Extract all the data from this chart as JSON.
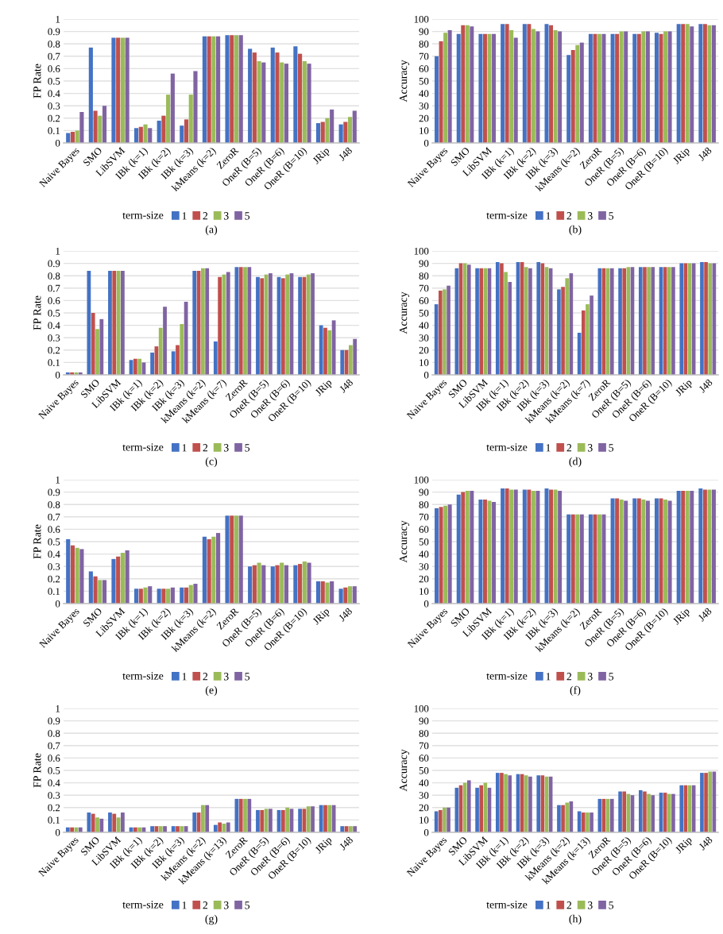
{
  "chart_data": [
    {
      "type": "bar",
      "ylabel": "FP Rate",
      "legend_title": "term-size",
      "legend": "bottom",
      "grid": "y",
      "annotations": [
        "(a)"
      ],
      "ylim": [
        0,
        1
      ],
      "yticks": [
        0,
        0.1,
        0.2,
        0.3,
        0.4,
        0.5,
        0.6,
        0.7,
        0.8,
        0.9,
        1
      ],
      "categories": [
        "Naive Bayes",
        "SMO",
        "LibSVM",
        "IBk (k=1)",
        "IBk (k=2)",
        "IBk (k=3)",
        "kMeans (k=2)",
        "ZeroR",
        "OneR (B=5)",
        "OneR (B=6)",
        "OneR (B=10)",
        "JRip",
        "J48"
      ],
      "series": [
        {
          "name": "1",
          "color": "#4472c4",
          "values": [
            0.08,
            0.77,
            0.85,
            0.12,
            0.18,
            0.14,
            0.86,
            0.87,
            0.76,
            0.77,
            0.78,
            0.16,
            0.15
          ]
        },
        {
          "name": "2",
          "color": "#c0504d",
          "values": [
            0.09,
            0.26,
            0.85,
            0.13,
            0.22,
            0.19,
            0.86,
            0.87,
            0.73,
            0.73,
            0.72,
            0.17,
            0.17
          ]
        },
        {
          "name": "3",
          "color": "#9bbb59",
          "values": [
            0.1,
            0.22,
            0.85,
            0.15,
            0.39,
            0.39,
            0.86,
            0.87,
            0.66,
            0.65,
            0.66,
            0.2,
            0.21
          ]
        },
        {
          "name": "5",
          "color": "#8064a2",
          "values": [
            0.25,
            0.3,
            0.85,
            0.12,
            0.56,
            0.58,
            0.86,
            0.87,
            0.65,
            0.64,
            0.64,
            0.27,
            0.26
          ]
        }
      ]
    },
    {
      "type": "bar",
      "ylabel": "Accuracy",
      "legend_title": "term-size",
      "legend": "bottom",
      "grid": "y",
      "annotations": [
        "(b)"
      ],
      "ylim": [
        0,
        100
      ],
      "yticks": [
        0,
        10,
        20,
        30,
        40,
        50,
        60,
        70,
        80,
        90,
        100
      ],
      "categories": [
        "Naive Bayes",
        "SMO",
        "LibSVM",
        "IBk (k=1)",
        "IBk (k=2)",
        "IBk (k=3)",
        "kMeans (k=2)",
        "ZeroR",
        "OneR (B=5)",
        "OneR (B=6)",
        "OneR (B=10)",
        "JRip",
        "J48"
      ],
      "series": [
        {
          "name": "1",
          "color": "#4472c4",
          "values": [
            70,
            88,
            88,
            96,
            96,
            96,
            71,
            88,
            88,
            88,
            89,
            96,
            96
          ]
        },
        {
          "name": "2",
          "color": "#c0504d",
          "values": [
            82,
            95,
            88,
            96,
            96,
            95,
            75,
            88,
            88,
            88,
            88,
            96,
            96
          ]
        },
        {
          "name": "3",
          "color": "#9bbb59",
          "values": [
            89,
            95,
            88,
            91,
            92,
            91,
            79,
            88,
            90,
            90,
            90,
            96,
            95
          ]
        },
        {
          "name": "5",
          "color": "#8064a2",
          "values": [
            91,
            94,
            88,
            85,
            90,
            90,
            81,
            88,
            90,
            90,
            90,
            94,
            95
          ]
        }
      ]
    },
    {
      "type": "bar",
      "ylabel": "FP Rate",
      "legend_title": "term-size",
      "legend": "bottom",
      "grid": "y",
      "annotations": [
        "(c)"
      ],
      "ylim": [
        0,
        1
      ],
      "yticks": [
        0,
        0.1,
        0.2,
        0.3,
        0.4,
        0.5,
        0.6,
        0.7,
        0.8,
        0.9,
        1
      ],
      "categories": [
        "Naive Bayes",
        "SMO",
        "LibSVM",
        "IBk (k=1)",
        "IBk (k=2)",
        "IBk (k=3)",
        "kMeans (k=2)",
        "kMeans (k=7)",
        "ZeroR",
        "OneR (B=5)",
        "OneR (B=6)",
        "OneR (B=10)",
        "JRip",
        "J48"
      ],
      "series": [
        {
          "name": "1",
          "color": "#4472c4",
          "values": [
            0.02,
            0.84,
            0.84,
            0.12,
            0.18,
            0.19,
            0.84,
            0.27,
            0.87,
            0.79,
            0.79,
            0.79,
            0.4,
            0.2
          ]
        },
        {
          "name": "2",
          "color": "#c0504d",
          "values": [
            0.02,
            0.5,
            0.84,
            0.13,
            0.23,
            0.24,
            0.84,
            0.79,
            0.87,
            0.78,
            0.78,
            0.79,
            0.38,
            0.2
          ]
        },
        {
          "name": "3",
          "color": "#9bbb59",
          "values": [
            0.02,
            0.37,
            0.84,
            0.13,
            0.38,
            0.41,
            0.86,
            0.81,
            0.87,
            0.81,
            0.81,
            0.81,
            0.36,
            0.24
          ]
        },
        {
          "name": "5",
          "color": "#8064a2",
          "values": [
            0.02,
            0.45,
            0.84,
            0.1,
            0.55,
            0.59,
            0.86,
            0.83,
            0.87,
            0.82,
            0.82,
            0.82,
            0.44,
            0.29
          ]
        }
      ]
    },
    {
      "type": "bar",
      "ylabel": "Accuracy",
      "legend_title": "term-size",
      "legend": "bottom",
      "grid": "y",
      "annotations": [
        "(d)"
      ],
      "ylim": [
        0,
        100
      ],
      "yticks": [
        0,
        10,
        20,
        30,
        40,
        50,
        60,
        70,
        80,
        90,
        100
      ],
      "categories": [
        "Naive Bayes",
        "SMO",
        "LibSVM",
        "IBk (k=1)",
        "IBk (k=2)",
        "IBk (k=3)",
        "kMeans (k=2)",
        "kMeans (k=7)",
        "ZeroR",
        "OneR (B=5)",
        "OneR (B=6)",
        "OneR (B=10)",
        "JRip",
        "J48"
      ],
      "series": [
        {
          "name": "1",
          "color": "#4472c4",
          "values": [
            57,
            86,
            86,
            91,
            91,
            91,
            69,
            34,
            86,
            86,
            87,
            87,
            90,
            91
          ]
        },
        {
          "name": "2",
          "color": "#c0504d",
          "values": [
            68,
            90,
            86,
            90,
            91,
            90,
            71,
            52,
            86,
            86,
            87,
            87,
            90,
            91
          ]
        },
        {
          "name": "3",
          "color": "#9bbb59",
          "values": [
            69,
            90,
            86,
            83,
            87,
            87,
            78,
            57,
            86,
            87,
            87,
            87,
            90,
            90
          ]
        },
        {
          "name": "5",
          "color": "#8064a2",
          "values": [
            72,
            89,
            86,
            75,
            86,
            86,
            82,
            64,
            86,
            87,
            87,
            87,
            90,
            90
          ]
        }
      ]
    },
    {
      "type": "bar",
      "ylabel": "FP Rate",
      "legend_title": "term-size",
      "legend": "bottom",
      "grid": "y",
      "annotations": [
        "(e)"
      ],
      "ylim": [
        0,
        1
      ],
      "yticks": [
        0,
        0.1,
        0.2,
        0.3,
        0.4,
        0.5,
        0.6,
        0.7,
        0.8,
        0.9,
        1
      ],
      "categories": [
        "Naive Bayes",
        "SMO",
        "LibSVM",
        "IBk (k=1)",
        "IBk (k=2)",
        "IBk (k=3)",
        "kMeans (k=2)",
        "ZeroR",
        "OneR (B=5)",
        "OneR (B=6)",
        "OneR (B=10)",
        "JRip",
        "J48"
      ],
      "series": [
        {
          "name": "1",
          "color": "#4472c4",
          "values": [
            0.52,
            0.26,
            0.36,
            0.12,
            0.12,
            0.13,
            0.54,
            0.71,
            0.3,
            0.3,
            0.31,
            0.18,
            0.12
          ]
        },
        {
          "name": "2",
          "color": "#c0504d",
          "values": [
            0.47,
            0.22,
            0.38,
            0.12,
            0.12,
            0.13,
            0.52,
            0.71,
            0.31,
            0.31,
            0.32,
            0.18,
            0.13
          ]
        },
        {
          "name": "3",
          "color": "#9bbb59",
          "values": [
            0.45,
            0.19,
            0.41,
            0.13,
            0.12,
            0.15,
            0.54,
            0.71,
            0.33,
            0.33,
            0.34,
            0.17,
            0.14
          ]
        },
        {
          "name": "5",
          "color": "#8064a2",
          "values": [
            0.44,
            0.19,
            0.43,
            0.14,
            0.13,
            0.16,
            0.57,
            0.71,
            0.31,
            0.31,
            0.33,
            0.18,
            0.14
          ]
        }
      ]
    },
    {
      "type": "bar",
      "ylabel": "Accuracy",
      "legend_title": "term-size",
      "legend": "bottom",
      "grid": "y",
      "annotations": [
        "(f)"
      ],
      "ylim": [
        0,
        100
      ],
      "yticks": [
        0,
        10,
        20,
        30,
        40,
        50,
        60,
        70,
        80,
        90,
        100
      ],
      "categories": [
        "Naive Bayes",
        "SMO",
        "LibSVM",
        "IBk (k=1)",
        "IBk (k=2)",
        "IBk (k=3)",
        "kMeans (k=2)",
        "ZeroR",
        "OneR (B=5)",
        "OneR (B=6)",
        "OneR (B=10)",
        "JRip",
        "J48"
      ],
      "series": [
        {
          "name": "1",
          "color": "#4472c4",
          "values": [
            77,
            88,
            84,
            93,
            92,
            93,
            72,
            72,
            85,
            85,
            85,
            91,
            93
          ]
        },
        {
          "name": "2",
          "color": "#c0504d",
          "values": [
            78,
            90,
            84,
            93,
            92,
            92,
            72,
            72,
            85,
            85,
            85,
            91,
            92
          ]
        },
        {
          "name": "3",
          "color": "#9bbb59",
          "values": [
            79,
            91,
            83,
            92,
            91,
            92,
            72,
            72,
            84,
            84,
            84,
            91,
            92
          ]
        },
        {
          "name": "5",
          "color": "#8064a2",
          "values": [
            80,
            91,
            82,
            92,
            91,
            91,
            72,
            72,
            83,
            83,
            83,
            91,
            92
          ]
        }
      ]
    },
    {
      "type": "bar",
      "ylabel": "FP Rate",
      "legend_title": "term-size",
      "legend": "bottom",
      "grid": "y",
      "annotations": [
        "(g)"
      ],
      "ylim": [
        0,
        1
      ],
      "yticks": [
        0,
        0.1,
        0.2,
        0.3,
        0.4,
        0.5,
        0.6,
        0.7,
        0.8,
        0.9,
        1
      ],
      "categories": [
        "Naive Bayes",
        "SMO",
        "LibSVM",
        "IBk (k=1)",
        "IBk (k=2)",
        "IBk (k=3)",
        "kMeans (k=2)",
        "kMeans (k=13)",
        "ZeroR",
        "OneR (B=5)",
        "OneR (B=6)",
        "OneR (B=10)",
        "JRip",
        "J48"
      ],
      "series": [
        {
          "name": "1",
          "color": "#4472c4",
          "values": [
            0.04,
            0.16,
            0.16,
            0.04,
            0.05,
            0.05,
            0.16,
            0.06,
            0.27,
            0.18,
            0.18,
            0.19,
            0.22,
            0.05
          ]
        },
        {
          "name": "2",
          "color": "#c0504d",
          "values": [
            0.04,
            0.15,
            0.15,
            0.04,
            0.05,
            0.05,
            0.16,
            0.08,
            0.27,
            0.18,
            0.18,
            0.19,
            0.22,
            0.05
          ]
        },
        {
          "name": "3",
          "color": "#9bbb59",
          "values": [
            0.04,
            0.12,
            0.12,
            0.04,
            0.05,
            0.05,
            0.22,
            0.07,
            0.27,
            0.19,
            0.2,
            0.21,
            0.22,
            0.05
          ]
        },
        {
          "name": "5",
          "color": "#8064a2",
          "values": [
            0.04,
            0.11,
            0.16,
            0.04,
            0.05,
            0.05,
            0.22,
            0.08,
            0.27,
            0.19,
            0.19,
            0.21,
            0.22,
            0.05
          ]
        }
      ]
    },
    {
      "type": "bar",
      "ylabel": "Accuracy",
      "legend_title": "term-size",
      "legend": "bottom",
      "grid": "y",
      "annotations": [
        "(h)"
      ],
      "ylim": [
        0,
        100
      ],
      "yticks": [
        0,
        10,
        20,
        30,
        40,
        50,
        60,
        70,
        80,
        90,
        100
      ],
      "categories": [
        "Naive Bayes",
        "SMO",
        "LibSVM",
        "IBk (k=1)",
        "IBk (k=2)",
        "IBk (k=3)",
        "kMeans (k=2)",
        "kMeans (k=13)",
        "ZeroR",
        "OneR (B=5)",
        "OneR (B=6)",
        "OneR (B=10)",
        "JRip",
        "J48"
      ],
      "series": [
        {
          "name": "1",
          "color": "#4472c4",
          "values": [
            17,
            36,
            36,
            48,
            47,
            46,
            22,
            17,
            27,
            33,
            34,
            32,
            38,
            48
          ]
        },
        {
          "name": "2",
          "color": "#c0504d",
          "values": [
            18,
            38,
            38,
            48,
            47,
            46,
            22,
            16,
            27,
            33,
            33,
            32,
            38,
            48
          ]
        },
        {
          "name": "3",
          "color": "#9bbb59",
          "values": [
            20,
            40,
            40,
            47,
            46,
            45,
            24,
            16,
            27,
            31,
            31,
            31,
            38,
            49
          ]
        },
        {
          "name": "5",
          "color": "#8064a2",
          "values": [
            20,
            42,
            36,
            46,
            45,
            45,
            25,
            16,
            27,
            30,
            30,
            31,
            38,
            49
          ]
        }
      ]
    }
  ]
}
